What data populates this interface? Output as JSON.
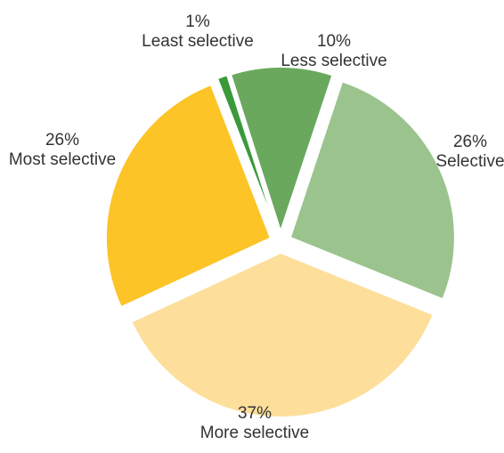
{
  "chart_data": {
    "type": "pie",
    "slices": [
      {
        "label": "Least selective",
        "value": 1,
        "value_label": "1%",
        "color": "#3a9a3a"
      },
      {
        "label": "Less selective",
        "value": 10,
        "value_label": "10%",
        "color": "#6aa85e"
      },
      {
        "label": "Selective",
        "value": 26,
        "value_label": "26%",
        "color": "#9bc38d"
      },
      {
        "label": "More selective",
        "value": 37,
        "value_label": "37%",
        "color": "#fddf9b"
      },
      {
        "label": "Most selective",
        "value": 26,
        "value_label": "26%",
        "color": "#fcc427"
      }
    ],
    "exploded": true,
    "legend": "none"
  }
}
